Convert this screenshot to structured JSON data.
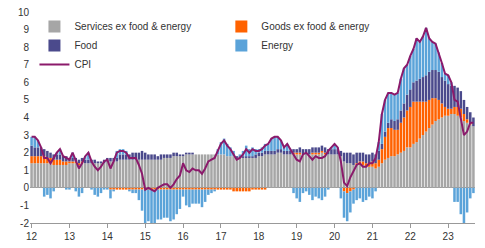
{
  "chart_data": {
    "type": "bar",
    "stacked": true,
    "grid": false,
    "legend": "upper left",
    "ylim": [
      -2,
      10
    ],
    "yticks": [
      -2,
      -1,
      0,
      1,
      2,
      3,
      4,
      5,
      6,
      7,
      8,
      9,
      10
    ],
    "categories": [
      "12",
      null,
      null,
      null,
      null,
      null,
      null,
      null,
      null,
      null,
      null,
      null,
      "13",
      null,
      null,
      null,
      null,
      null,
      null,
      null,
      null,
      null,
      null,
      null,
      "14",
      null,
      null,
      null,
      null,
      null,
      null,
      null,
      null,
      null,
      null,
      null,
      "15",
      null,
      null,
      null,
      null,
      null,
      null,
      null,
      null,
      null,
      null,
      null,
      "16",
      null,
      null,
      null,
      null,
      null,
      null,
      null,
      null,
      null,
      null,
      null,
      "17",
      null,
      null,
      null,
      null,
      null,
      null,
      null,
      null,
      null,
      null,
      null,
      "18",
      null,
      null,
      null,
      null,
      null,
      null,
      null,
      null,
      null,
      null,
      null,
      "19",
      null,
      null,
      null,
      null,
      null,
      null,
      null,
      null,
      null,
      null,
      null,
      "20",
      null,
      null,
      null,
      null,
      null,
      null,
      null,
      null,
      null,
      null,
      null,
      "21",
      null,
      null,
      null,
      null,
      null,
      null,
      null,
      null,
      null,
      null,
      null,
      "22",
      null,
      null,
      null,
      null,
      null,
      null,
      null,
      null,
      null,
      null,
      null,
      "23",
      null,
      null,
      null,
      null,
      null,
      null,
      null,
      null
    ],
    "series": [
      {
        "name": "Services ex food & energy",
        "type": "bar",
        "color": "#a6a6a6",
        "values": [
          1.4,
          1.4,
          1.4,
          1.4,
          1.4,
          1.4,
          1.4,
          1.3,
          1.3,
          1.3,
          1.3,
          1.3,
          1.4,
          1.4,
          1.4,
          1.3,
          1.4,
          1.4,
          1.4,
          1.4,
          1.4,
          1.4,
          1.4,
          1.4,
          1.5,
          1.5,
          1.5,
          1.5,
          1.6,
          1.6,
          1.6,
          1.6,
          1.6,
          1.6,
          1.6,
          1.6,
          1.6,
          1.6,
          1.6,
          1.6,
          1.6,
          1.6,
          1.7,
          1.7,
          1.7,
          1.8,
          1.8,
          1.8,
          1.8,
          1.9,
          1.9,
          1.9,
          1.9,
          1.9,
          1.9,
          1.9,
          1.9,
          1.9,
          1.9,
          1.9,
          1.9,
          1.9,
          1.8,
          1.8,
          1.8,
          1.7,
          1.7,
          1.7,
          1.7,
          1.7,
          1.7,
          1.7,
          1.8,
          1.8,
          1.9,
          1.9,
          1.9,
          1.9,
          2.0,
          2.0,
          1.9,
          1.9,
          1.9,
          1.9,
          1.9,
          1.9,
          1.9,
          1.9,
          1.9,
          1.9,
          1.9,
          1.9,
          2.0,
          1.9,
          1.9,
          1.9,
          1.9,
          1.9,
          1.8,
          1.5,
          1.4,
          1.4,
          1.3,
          1.3,
          1.3,
          1.3,
          1.2,
          1.2,
          1.2,
          1.1,
          1.2,
          1.4,
          1.6,
          1.7,
          1.8,
          1.8,
          1.9,
          2.0,
          2.1,
          2.3,
          2.3,
          2.5,
          2.6,
          2.8,
          3.0,
          3.2,
          3.4,
          3.6,
          3.8,
          3.9,
          4.0,
          4.1,
          4.1,
          4.2,
          4.2,
          4.1,
          4.0,
          3.8,
          3.7,
          3.6,
          3.5
        ]
      },
      {
        "name": "Goods ex food & energy",
        "type": "bar",
        "color": "#ff6200",
        "values": [
          0.4,
          0.4,
          0.4,
          0.4,
          0.4,
          0.3,
          0.3,
          0.3,
          0.3,
          0.3,
          0.2,
          0.2,
          0.1,
          0.1,
          0.1,
          0.1,
          0.1,
          0.0,
          0.0,
          0.0,
          0.0,
          0.0,
          0.0,
          0.0,
          0.0,
          -0.1,
          -0.1,
          -0.1,
          -0.1,
          -0.1,
          -0.1,
          -0.1,
          -0.1,
          -0.1,
          -0.1,
          -0.1,
          -0.1,
          -0.1,
          -0.1,
          -0.1,
          -0.1,
          -0.1,
          -0.1,
          -0.1,
          -0.1,
          -0.1,
          -0.1,
          -0.1,
          -0.1,
          -0.1,
          -0.1,
          -0.1,
          -0.1,
          -0.1,
          -0.1,
          -0.1,
          -0.1,
          -0.1,
          -0.1,
          -0.1,
          -0.1,
          -0.1,
          -0.1,
          -0.1,
          -0.2,
          -0.2,
          -0.2,
          -0.2,
          -0.2,
          -0.2,
          -0.1,
          -0.1,
          -0.1,
          -0.1,
          -0.1,
          0.0,
          0.0,
          0.0,
          0.0,
          0.0,
          0.0,
          0.0,
          0.0,
          0.1,
          0.1,
          0.1,
          0.0,
          0.0,
          0.0,
          0.1,
          0.1,
          0.1,
          0.1,
          0.1,
          0.0,
          0.0,
          0.0,
          0.0,
          0.0,
          -0.2,
          -0.3,
          -0.2,
          -0.1,
          0.1,
          0.2,
          0.2,
          0.2,
          0.2,
          0.3,
          0.3,
          0.4,
          0.8,
          1.3,
          1.7,
          1.6,
          1.5,
          1.4,
          1.7,
          1.9,
          2.1,
          2.3,
          2.4,
          2.3,
          2.1,
          1.9,
          1.7,
          1.6,
          1.5,
          1.3,
          1.1,
          0.8,
          0.5,
          0.4,
          0.3,
          0.4,
          0.5,
          0.5,
          0.4,
          0.2,
          0.1,
          0.0
        ]
      },
      {
        "name": "Food",
        "type": "bar",
        "color": "#4b4a8c",
        "values": [
          0.6,
          0.5,
          0.5,
          0.5,
          0.4,
          0.4,
          0.3,
          0.3,
          0.3,
          0.3,
          0.3,
          0.3,
          0.2,
          0.2,
          0.2,
          0.2,
          0.2,
          0.2,
          0.2,
          0.2,
          0.2,
          0.1,
          0.1,
          0.2,
          0.2,
          0.2,
          0.2,
          0.2,
          0.3,
          0.3,
          0.3,
          0.3,
          0.4,
          0.4,
          0.4,
          0.5,
          0.4,
          0.3,
          0.3,
          0.3,
          0.2,
          0.3,
          0.2,
          0.2,
          0.2,
          0.2,
          0.2,
          0.1,
          0.1,
          0.1,
          0.1,
          0.1,
          0.0,
          0.0,
          0.0,
          0.0,
          0.0,
          0.0,
          0.0,
          0.0,
          0.0,
          0.0,
          0.0,
          0.0,
          0.0,
          0.1,
          0.1,
          0.1,
          0.1,
          0.1,
          0.1,
          0.2,
          0.2,
          0.2,
          0.2,
          0.2,
          0.2,
          0.2,
          0.2,
          0.2,
          0.2,
          0.2,
          0.2,
          0.2,
          0.2,
          0.3,
          0.3,
          0.3,
          0.3,
          0.3,
          0.3,
          0.3,
          0.3,
          0.3,
          0.3,
          0.3,
          0.3,
          0.3,
          0.3,
          0.5,
          0.6,
          0.6,
          0.6,
          0.6,
          0.5,
          0.5,
          0.5,
          0.5,
          0.5,
          0.5,
          0.5,
          0.3,
          0.3,
          0.3,
          0.5,
          0.5,
          0.6,
          0.7,
          0.8,
          0.9,
          1.0,
          1.1,
          1.2,
          1.3,
          1.4,
          1.5,
          1.6,
          1.6,
          1.6,
          1.6,
          1.5,
          1.5,
          1.4,
          1.3,
          1.2,
          1.1,
          1.0,
          0.8,
          0.7,
          0.6,
          0.5
        ]
      },
      {
        "name": "Energy",
        "type": "bar",
        "color": "#5ba3d9",
        "values": [
          0.5,
          0.6,
          0.4,
          0.0,
          -0.5,
          -0.4,
          -0.6,
          -0.2,
          0.1,
          0.3,
          0.0,
          -0.1,
          -0.1,
          0.3,
          -0.2,
          -0.5,
          -0.3,
          0.2,
          0.4,
          -0.1,
          -0.4,
          -0.5,
          -0.3,
          -0.1,
          -0.1,
          -0.5,
          -0.1,
          0.4,
          0.3,
          0.3,
          0.2,
          -0.1,
          -0.2,
          -0.2,
          -0.6,
          -1.2,
          -2.0,
          -1.8,
          -1.9,
          -2.0,
          -1.7,
          -1.7,
          -1.6,
          -1.6,
          -1.8,
          -1.7,
          -1.4,
          -1.1,
          -0.4,
          -0.9,
          -1.0,
          -0.8,
          -0.8,
          -0.8,
          -1.0,
          -0.7,
          -0.3,
          -0.2,
          -0.1,
          0.3,
          0.7,
          0.9,
          0.7,
          0.5,
          0.3,
          0.0,
          0.1,
          0.3,
          0.6,
          0.4,
          0.5,
          0.3,
          0.2,
          0.3,
          0.4,
          0.4,
          0.7,
          0.8,
          0.7,
          0.5,
          0.2,
          0.4,
          0.1,
          -0.3,
          -0.6,
          -0.8,
          -0.3,
          -0.2,
          -0.4,
          -0.7,
          -0.5,
          -0.6,
          -0.7,
          -0.5,
          -0.1,
          0.1,
          0.3,
          0.1,
          -0.6,
          -1.5,
          -1.6,
          -1.2,
          -0.8,
          -0.7,
          -0.6,
          -0.8,
          -0.7,
          -0.5,
          -0.6,
          -0.2,
          0.5,
          1.7,
          1.8,
          1.7,
          1.5,
          1.5,
          1.5,
          1.8,
          2.0,
          1.7,
          1.9,
          1.9,
          2.4,
          2.1,
          2.3,
          2.7,
          1.9,
          1.6,
          1.5,
          1.1,
          0.8,
          0.4,
          0.5,
          0.2,
          -0.8,
          -0.8,
          -1.5,
          -2.0,
          -1.4,
          -0.6,
          -0.3
        ]
      },
      {
        "name": "CPI",
        "type": "line",
        "color": "#8b1a6b",
        "values": [
          2.9,
          2.9,
          2.7,
          2.3,
          1.7,
          1.7,
          1.4,
          1.7,
          2.0,
          2.2,
          1.8,
          1.7,
          1.6,
          2.0,
          1.5,
          1.1,
          1.4,
          1.8,
          2.0,
          1.5,
          1.2,
          1.0,
          1.2,
          1.5,
          1.6,
          1.1,
          1.5,
          2.0,
          2.1,
          2.1,
          2.0,
          1.7,
          1.7,
          1.7,
          1.3,
          0.8,
          -0.1,
          0.0,
          -0.1,
          -0.2,
          0.0,
          0.1,
          0.2,
          0.2,
          0.0,
          0.2,
          0.5,
          0.7,
          1.4,
          1.0,
          0.9,
          1.1,
          1.0,
          1.0,
          0.8,
          1.1,
          1.5,
          1.6,
          1.7,
          2.1,
          2.5,
          2.7,
          2.4,
          2.2,
          1.9,
          1.6,
          1.7,
          1.9,
          2.2,
          2.0,
          2.2,
          2.1,
          2.1,
          2.2,
          2.4,
          2.5,
          2.8,
          2.9,
          2.9,
          2.7,
          2.3,
          2.5,
          2.2,
          1.9,
          1.6,
          1.5,
          1.9,
          2.0,
          1.8,
          1.6,
          1.8,
          1.7,
          1.7,
          1.8,
          2.1,
          2.3,
          2.5,
          2.3,
          1.5,
          0.3,
          0.1,
          0.6,
          1.0,
          1.3,
          1.4,
          1.2,
          1.2,
          1.4,
          1.4,
          1.7,
          2.6,
          4.2,
          5.0,
          5.4,
          5.4,
          5.3,
          5.4,
          6.2,
          6.8,
          7.0,
          7.5,
          7.9,
          8.5,
          8.3,
          8.6,
          9.1,
          8.5,
          8.3,
          8.2,
          7.7,
          7.1,
          6.5,
          6.4,
          6.0,
          5.0,
          4.9,
          4.0,
          3.0,
          3.2,
          3.7,
          3.7
        ]
      }
    ]
  }
}
